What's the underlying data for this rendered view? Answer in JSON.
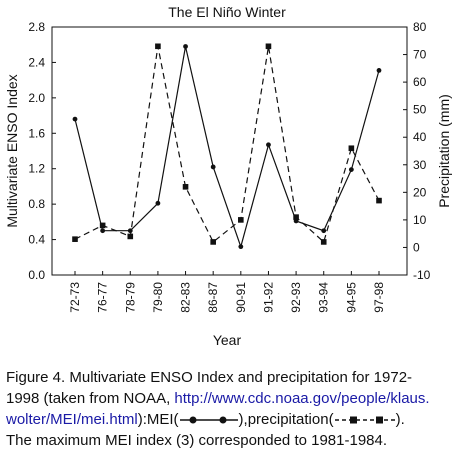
{
  "chart_data": {
    "type": "line",
    "title": "The El Niño Winter",
    "xlabel": "Year",
    "ylabel_left": "Multivariate ENSO Index",
    "ylabel_right": "Precipitation (mm)",
    "categories": [
      "72-73",
      "76-77",
      "78-79",
      "79-80",
      "82-83",
      "86-87",
      "90-91",
      "91-92",
      "92-93",
      "93-94",
      "94-95",
      "97-98"
    ],
    "yticks_left": [
      "0.0",
      "0.4",
      "0.8",
      "1.2",
      "1.6",
      "2.0",
      "2.4",
      "2.8"
    ],
    "ylim_left": [
      0,
      2.8
    ],
    "yticks_right": [
      "-10",
      "0",
      "10",
      "20",
      "30",
      "40",
      "50",
      "60",
      "70",
      "80"
    ],
    "ylim_right": [
      -10,
      80
    ],
    "grid": false,
    "series": [
      {
        "name": "MEI",
        "axis": "left",
        "style": "solid",
        "marker": "circle",
        "values": [
          1.76,
          0.5,
          0.5,
          0.81,
          2.58,
          1.22,
          0.32,
          1.47,
          0.61,
          0.5,
          1.19,
          2.31
        ]
      },
      {
        "name": "precipitation",
        "axis": "right",
        "style": "dashed",
        "marker": "square",
        "values": [
          3,
          8,
          4,
          73,
          22,
          2,
          10,
          73,
          11,
          2,
          36,
          17
        ]
      }
    ]
  },
  "caption": {
    "line1": "Figure 4. Multivariate ENSO Index and precipitation for 1972-",
    "line2_pre": "1998 (taken from NOAA, ",
    "link": "http://www.cdc.noaa.gov/people/klaus.wolter/MEI/mei.html",
    "link_part1": "http://www.cdc.noaa.gov/people/klaus.",
    "link_part2": "wolter/MEI/mei.html",
    "mei_label": "):MEI(",
    "precip_label": "),precipitation(",
    "end_paren": ").",
    "line4": "The maximum MEI index (3) corresponded to 1981-1984."
  }
}
